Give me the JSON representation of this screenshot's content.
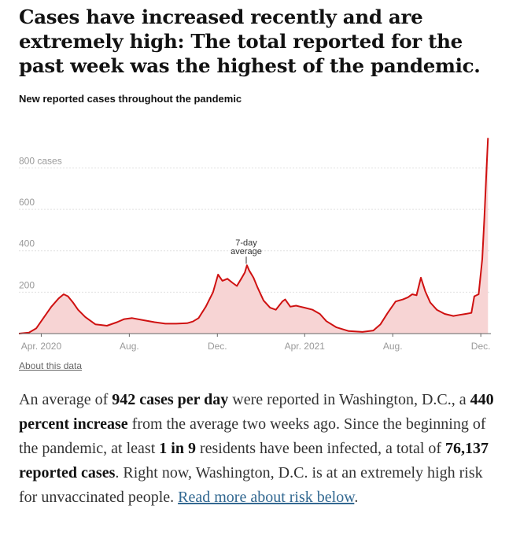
{
  "headline": "Cases have increased recently and are extremely high: The total reported for the past week was the highest of the pandemic.",
  "about_link": "About this data",
  "summary": {
    "p1": "An average of ",
    "avg": "942 cases per day",
    "p2": " were reported in Washington, D.C., a ",
    "pct": "440 percent increase",
    "p3": " from the average two weeks ago. Since the beginning of the pandemic, at least ",
    "ratio": "1 in 9",
    "p4": " residents have been infected, a total of ",
    "total": "76,137 reported cases",
    "p5": ". Right now, Washington, D.C. is at an extremely high risk for unvaccinated people. ",
    "link": "Read more about risk below",
    "p6": "."
  },
  "colors": {
    "line": "#cf1111",
    "fill": "#f7d4d4",
    "grid": "#e0e0e0",
    "axis": "#666666"
  },
  "chart_data": {
    "type": "area",
    "title": "New reported cases throughout the pandemic",
    "xlabel": "",
    "ylabel": "",
    "x_start": "2020-03-01",
    "x_end": "2021-12-15",
    "ylim": [
      0,
      950
    ],
    "y_ticks": [
      {
        "value": 200,
        "label": "200"
      },
      {
        "value": 400,
        "label": "400"
      },
      {
        "value": 600,
        "label": "600"
      },
      {
        "value": 800,
        "label": "800 cases"
      }
    ],
    "x_ticks": [
      {
        "date": "2020-04-01",
        "label": "Apr. 2020"
      },
      {
        "date": "2020-08-01",
        "label": "Aug."
      },
      {
        "date": "2020-12-01",
        "label": "Dec."
      },
      {
        "date": "2021-04-01",
        "label": "Apr. 2021"
      },
      {
        "date": "2021-08-01",
        "label": "Aug."
      },
      {
        "date": "2021-12-01",
        "label": "Dec."
      }
    ],
    "grid": true,
    "annotation": {
      "label_line1": "7-day",
      "label_line2": "average",
      "date": "2021-01-10",
      "value": 330
    },
    "series": [
      {
        "name": "7-day average",
        "points": [
          [
            "2020-03-01",
            0
          ],
          [
            "2020-03-15",
            5
          ],
          [
            "2020-03-25",
            25
          ],
          [
            "2020-04-05",
            80
          ],
          [
            "2020-04-15",
            130
          ],
          [
            "2020-04-25",
            170
          ],
          [
            "2020-05-02",
            190
          ],
          [
            "2020-05-08",
            180
          ],
          [
            "2020-05-15",
            150
          ],
          [
            "2020-05-22",
            115
          ],
          [
            "2020-06-01",
            80
          ],
          [
            "2020-06-15",
            45
          ],
          [
            "2020-07-01",
            38
          ],
          [
            "2020-07-15",
            55
          ],
          [
            "2020-07-25",
            70
          ],
          [
            "2020-08-05",
            75
          ],
          [
            "2020-08-20",
            65
          ],
          [
            "2020-09-05",
            55
          ],
          [
            "2020-09-20",
            48
          ],
          [
            "2020-10-05",
            48
          ],
          [
            "2020-10-20",
            50
          ],
          [
            "2020-10-28",
            58
          ],
          [
            "2020-11-05",
            75
          ],
          [
            "2020-11-15",
            130
          ],
          [
            "2020-11-25",
            200
          ],
          [
            "2020-12-02",
            285
          ],
          [
            "2020-12-08",
            255
          ],
          [
            "2020-12-15",
            265
          ],
          [
            "2020-12-22",
            245
          ],
          [
            "2020-12-28",
            230
          ],
          [
            "2021-01-03",
            265
          ],
          [
            "2021-01-08",
            295
          ],
          [
            "2021-01-11",
            330
          ],
          [
            "2021-01-14",
            305
          ],
          [
            "2021-01-20",
            270
          ],
          [
            "2021-01-26",
            220
          ],
          [
            "2021-02-03",
            160
          ],
          [
            "2021-02-12",
            125
          ],
          [
            "2021-02-20",
            115
          ],
          [
            "2021-03-01",
            155
          ],
          [
            "2021-03-05",
            165
          ],
          [
            "2021-03-12",
            130
          ],
          [
            "2021-03-20",
            135
          ],
          [
            "2021-04-01",
            125
          ],
          [
            "2021-04-12",
            115
          ],
          [
            "2021-04-22",
            95
          ],
          [
            "2021-05-01",
            60
          ],
          [
            "2021-05-15",
            30
          ],
          [
            "2021-06-01",
            12
          ],
          [
            "2021-06-20",
            8
          ],
          [
            "2021-07-05",
            15
          ],
          [
            "2021-07-15",
            45
          ],
          [
            "2021-07-25",
            100
          ],
          [
            "2021-08-05",
            155
          ],
          [
            "2021-08-15",
            165
          ],
          [
            "2021-08-22",
            175
          ],
          [
            "2021-08-28",
            190
          ],
          [
            "2021-09-03",
            185
          ],
          [
            "2021-09-09",
            270
          ],
          [
            "2021-09-15",
            205
          ],
          [
            "2021-09-22",
            150
          ],
          [
            "2021-10-01",
            115
          ],
          [
            "2021-10-12",
            95
          ],
          [
            "2021-10-24",
            85
          ],
          [
            "2021-11-01",
            90
          ],
          [
            "2021-11-10",
            95
          ],
          [
            "2021-11-18",
            100
          ],
          [
            "2021-11-22",
            180
          ],
          [
            "2021-11-28",
            190
          ],
          [
            "2021-12-03",
            360
          ],
          [
            "2021-12-06",
            560
          ],
          [
            "2021-12-09",
            800
          ],
          [
            "2021-12-11",
            945
          ]
        ]
      }
    ]
  }
}
